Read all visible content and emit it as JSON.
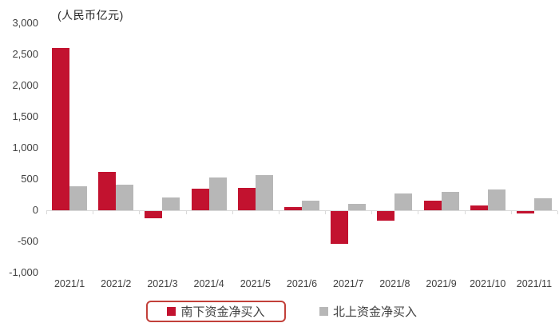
{
  "chart_data": {
    "type": "bar",
    "title": "(人民币亿元)",
    "categories": [
      "2021/1",
      "2021/2",
      "2021/3",
      "2021/4",
      "2021/5",
      "2021/6",
      "2021/7",
      "2021/8",
      "2021/9",
      "2021/10",
      "2021/11"
    ],
    "series": [
      {
        "name": "南下资金净买入",
        "color": "#c2122f",
        "values": [
          2600,
          610,
          -110,
          340,
          360,
          50,
          -530,
          -150,
          150,
          80,
          -40
        ]
      },
      {
        "name": "北上资金净买入",
        "color": "#b7b7b7",
        "values": [
          390,
          410,
          200,
          520,
          560,
          150,
          100,
          270,
          300,
          330,
          190
        ]
      }
    ],
    "ylim": [
      -1000,
      3000
    ],
    "y_tick_step": 500,
    "y_tick_labels": [
      "3,000",
      "2,500",
      "2,000",
      "1,500",
      "1,000",
      "500",
      "0",
      "-500",
      "-1,000"
    ],
    "xlabel": "",
    "ylabel": "(人民币亿元)",
    "grid": false,
    "legend_position": "bottom",
    "annotations": [
      "red rounded box highlights legend item 南下资金净买入"
    ]
  },
  "legend": {
    "items": [
      {
        "label": "南下资金净买入",
        "swatch_color": "#c2122f",
        "highlighted": true
      },
      {
        "label": "北上资金净买入",
        "swatch_color": "#b7b7b7",
        "highlighted": false
      }
    ]
  },
  "colors": {
    "southbound_red": "#c2122f",
    "northbound_gray": "#b7b7b7",
    "legend_highlight_border": "#c2403a",
    "axis_line": "#d9d9d9",
    "axis_text": "#404040",
    "background": "#ffffff"
  }
}
